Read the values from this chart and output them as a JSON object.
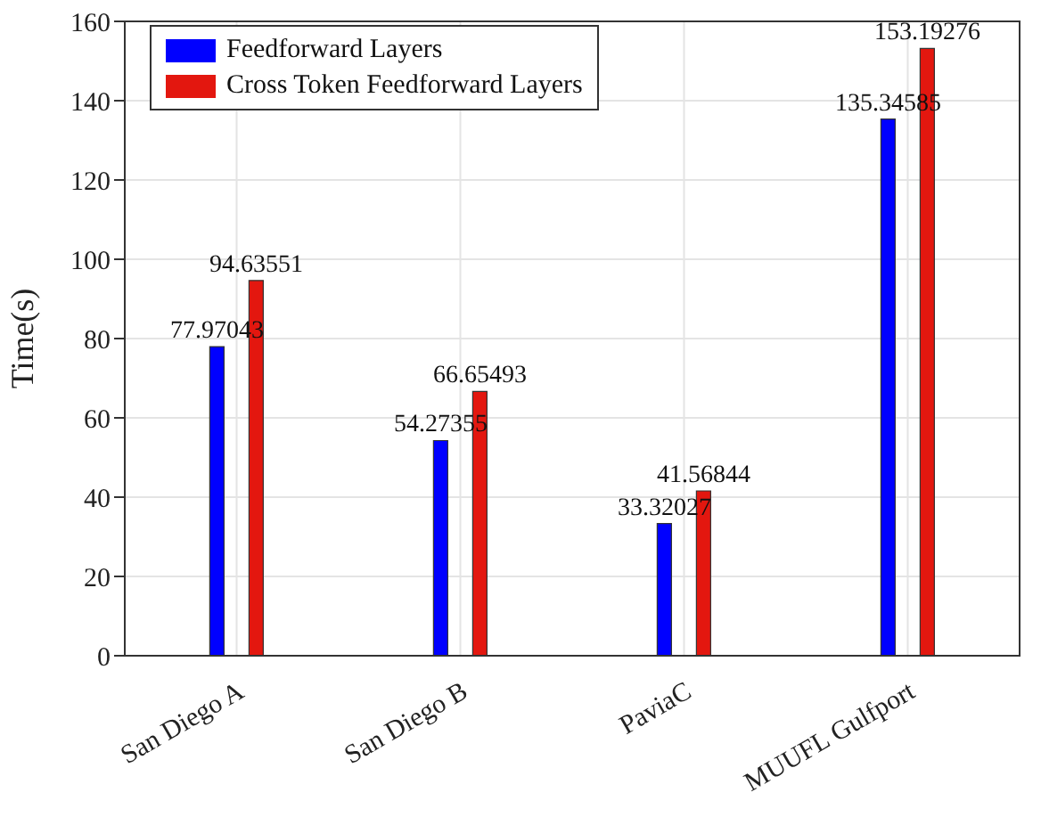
{
  "chart_data": {
    "type": "bar",
    "ylabel": "Time(s)",
    "categories": [
      "San Diego A",
      "San Diego B",
      "PaviaC",
      "MUUFL Gulfport"
    ],
    "series": [
      {
        "name": "Feedforward Layers",
        "color": "#0000ff",
        "values": [
          77.97043,
          54.27355,
          33.32027,
          135.34585
        ]
      },
      {
        "name": "Cross Token Feedforward Layers",
        "color": "#e3170f",
        "values": [
          94.63551,
          66.65493,
          41.56844,
          153.19276
        ]
      }
    ],
    "ylim": [
      0,
      160
    ],
    "yticks": [
      0,
      20,
      40,
      60,
      80,
      100,
      120,
      140,
      160
    ],
    "grid": true,
    "legend": "top left",
    "data_labels": true
  }
}
